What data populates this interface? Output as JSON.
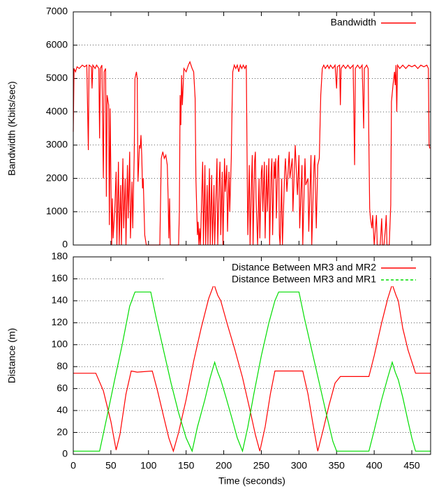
{
  "chart_data": [
    {
      "type": "line",
      "ylabel": "Bandwidth (Kbits/sec)",
      "xlim": [
        0,
        475
      ],
      "ylim": [
        0,
        7000
      ],
      "yticks": [
        0,
        1000,
        2000,
        3000,
        4000,
        5000,
        6000,
        7000
      ],
      "grid": true,
      "legend": "top-right",
      "series": [
        {
          "name": "Bandwidth",
          "color": "#ff0000",
          "x": [
            0,
            1,
            3,
            5,
            8,
            12,
            15,
            18,
            20,
            21,
            24,
            25,
            26,
            29,
            31,
            34,
            35,
            36,
            38,
            40,
            41,
            43,
            44,
            45,
            47,
            48,
            49,
            51,
            52,
            53,
            55,
            57,
            58,
            60,
            61,
            63,
            64,
            66,
            67,
            69,
            70,
            72,
            73,
            75,
            76,
            78,
            79,
            81,
            82,
            84,
            85,
            86,
            88,
            89,
            90,
            91,
            92,
            93,
            95,
            97,
            115,
            117,
            119,
            121,
            123,
            125,
            126,
            127,
            128,
            129,
            140,
            141,
            142,
            143,
            144,
            145,
            147,
            150,
            153,
            155,
            158,
            160,
            162,
            163,
            165,
            166,
            167,
            168,
            169,
            172,
            173,
            175,
            176,
            178,
            179,
            181,
            182,
            184,
            185,
            187,
            188,
            191,
            192,
            194,
            195,
            196,
            198,
            199,
            201,
            202,
            204,
            205,
            207,
            208,
            210,
            211,
            212,
            214,
            216,
            218,
            220,
            222,
            224,
            226,
            228,
            230,
            231,
            232,
            234,
            235,
            237,
            238,
            239,
            241,
            242,
            243,
            245,
            247,
            248,
            250,
            251,
            252,
            254,
            255,
            257,
            258,
            260,
            261,
            263,
            264,
            265,
            267,
            268,
            269,
            270,
            272,
            273,
            274,
            275,
            277,
            278,
            281,
            282,
            284,
            287,
            288,
            291,
            292,
            295,
            296,
            298,
            300,
            301,
            304,
            305,
            308,
            309,
            312,
            313,
            316,
            317,
            320,
            321,
            323,
            325,
            327,
            329,
            331,
            333,
            335,
            338,
            340,
            342,
            345,
            348,
            350,
            351,
            354,
            355,
            356,
            359,
            362,
            365,
            368,
            372,
            374,
            375,
            378,
            381,
            384,
            386,
            387,
            390,
            392,
            393,
            394,
            395,
            397,
            398,
            400,
            402,
            403,
            404,
            408,
            410,
            411,
            413,
            415,
            416,
            417,
            420,
            422,
            423,
            425,
            427,
            428,
            429,
            430,
            431,
            434,
            438,
            442,
            446,
            450,
            454,
            458,
            462,
            466,
            470,
            472,
            473,
            474
          ],
          "values": [
            3400,
            5300,
            5200,
            5350,
            5300,
            5400,
            5350,
            5400,
            2850,
            5400,
            5350,
            4700,
            5400,
            5300,
            5400,
            5300,
            3200,
            5300,
            5400,
            2000,
            5200,
            5300,
            1450,
            4500,
            4200,
            600,
            4100,
            0,
            1400,
            200,
            1000,
            2200,
            0,
            2500,
            0,
            1800,
            0,
            2600,
            500,
            2000,
            0,
            2400,
            800,
            2800,
            200,
            1900,
            500,
            2700,
            5000,
            5200,
            5000,
            1900,
            3000,
            2900,
            3300,
            2700,
            1700,
            2000,
            300,
            0,
            0,
            2600,
            2800,
            2600,
            2700,
            2400,
            1500,
            200,
            1400,
            0,
            0,
            1000,
            4500,
            3600,
            5100,
            4200,
            5300,
            5200,
            5400,
            5500,
            5300,
            5200,
            4400,
            2000,
            300,
            700,
            0,
            500,
            0,
            2500,
            0,
            2400,
            0,
            1800,
            0,
            2300,
            0,
            2100,
            0,
            1800,
            0,
            2600,
            0,
            1900,
            2500,
            300,
            2200,
            0,
            2600,
            1600,
            2400,
            400,
            2200,
            1000,
            2600,
            4000,
            5200,
            5400,
            5300,
            5400,
            5200,
            5400,
            5300,
            5400,
            5300,
            5400,
            2700,
            300,
            2400,
            0,
            2000,
            2700,
            0,
            2500,
            2800,
            1400,
            0,
            2000,
            200,
            2200,
            2400,
            1000,
            2500,
            200,
            2400,
            1000,
            2600,
            0,
            2200,
            2600,
            300,
            2500,
            2000,
            2600,
            800,
            2500,
            2700,
            300,
            0,
            2000,
            0,
            2200,
            2600,
            1600,
            2800,
            2000,
            2600,
            1000,
            3000,
            2500,
            1500,
            2700,
            500,
            2400,
            0,
            2600,
            1800,
            2000,
            400,
            2700,
            0,
            2400,
            2700,
            500,
            2400,
            2600,
            4500,
            5300,
            5400,
            5300,
            5400,
            5300,
            5400,
            5300,
            5400,
            4700,
            5350,
            5400,
            4200,
            5300,
            5400,
            5300,
            5400,
            5300,
            5400,
            2400,
            5300,
            5400,
            5300,
            5400,
            3500,
            5300,
            5400,
            5300,
            3000,
            1100,
            800,
            500,
            900,
            0,
            600,
            900,
            0,
            0,
            800,
            0,
            0,
            500,
            900,
            0,
            0,
            1200,
            4300,
            4800,
            5200,
            4800,
            5400,
            4000,
            5400,
            5300,
            5400,
            5300,
            5400,
            5350,
            5400,
            5300,
            5400,
            5350,
            5400,
            5300,
            3000,
            2900
          ]
        }
      ]
    },
    {
      "type": "line",
      "xlabel": "Time (seconds)",
      "ylabel": "Distance (m)",
      "xlim": [
        0,
        475
      ],
      "xticks": [
        0,
        50,
        100,
        150,
        200,
        250,
        300,
        350,
        400,
        450
      ],
      "ylim": [
        0,
        180
      ],
      "yticks": [
        0,
        20,
        40,
        60,
        80,
        100,
        120,
        140,
        160,
        180
      ],
      "grid": true,
      "legend": "top-right",
      "series": [
        {
          "name": "Distance Between MR3 and MR2",
          "color": "#ff0000",
          "x": [
            0,
            30,
            40,
            50,
            57,
            62,
            70,
            77,
            85,
            105,
            112,
            120,
            127,
            133,
            140,
            150,
            160,
            170,
            180,
            187,
            192,
            196,
            205,
            215,
            225,
            235,
            242,
            248,
            255,
            262,
            268,
            280,
            305,
            312,
            318,
            325,
            332,
            340,
            348,
            355,
            393,
            400,
            410,
            418,
            424,
            429,
            432,
            438,
            445,
            455,
            475
          ],
          "values": [
            74,
            74,
            58,
            30,
            4,
            18,
            55,
            76,
            75,
            76,
            58,
            35,
            15,
            3,
            20,
            50,
            85,
            115,
            142,
            155,
            145,
            140,
            118,
            95,
            70,
            40,
            18,
            3,
            25,
            55,
            76,
            76,
            76,
            55,
            30,
            3,
            22,
            45,
            65,
            71,
            71,
            90,
            120,
            142,
            155,
            145,
            140,
            115,
            95,
            74,
            74
          ]
        },
        {
          "name": "Distance Between MR3 and MR1",
          "color": "#00dd00",
          "x": [
            0,
            30,
            35,
            45,
            55,
            65,
            75,
            82,
            103,
            110,
            120,
            130,
            140,
            150,
            158,
            165,
            175,
            182,
            188,
            192,
            196,
            203,
            210,
            218,
            225,
            232,
            240,
            250,
            260,
            268,
            273,
            300,
            307,
            317,
            327,
            337,
            345,
            350,
            393,
            400,
            410,
            418,
            424,
            428,
            432,
            438,
            445,
            450,
            455,
            475
          ],
          "values": [
            3,
            3,
            3,
            35,
            68,
            100,
            135,
            148,
            148,
            125,
            95,
            65,
            38,
            15,
            3,
            25,
            50,
            70,
            84,
            75,
            68,
            52,
            35,
            15,
            3,
            25,
            55,
            90,
            120,
            140,
            148,
            148,
            125,
            95,
            65,
            35,
            12,
            3,
            3,
            22,
            50,
            70,
            84,
            75,
            68,
            52,
            30,
            15,
            3,
            3
          ]
        }
      ]
    }
  ]
}
